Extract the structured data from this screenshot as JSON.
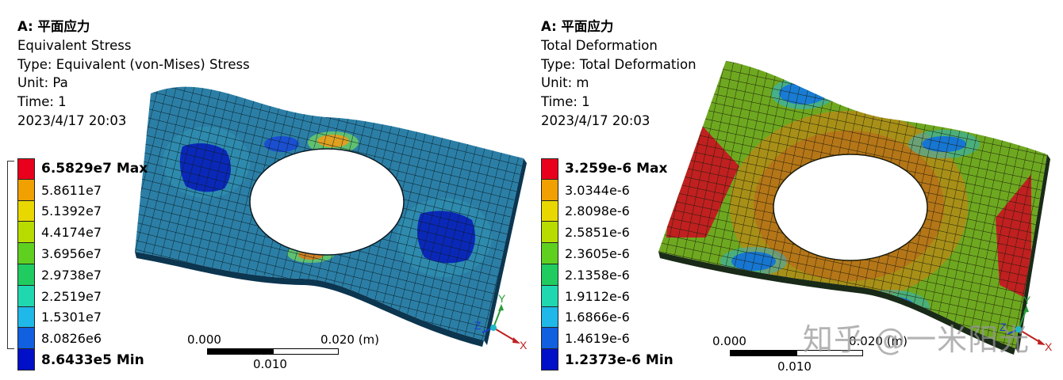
{
  "left": {
    "title": "A: 平面应力",
    "result": "Equivalent Stress",
    "type": "Type: Equivalent (von-Mises) Stress",
    "unit": "Unit: Pa",
    "time": "Time: 1",
    "date": "2023/4/17 20:03",
    "legend": [
      {
        "label": "6.5829e7 Max",
        "color": "#e8001c",
        "bold": true
      },
      {
        "label": "5.8611e7",
        "color": "#f0a000",
        "bold": false
      },
      {
        "label": "5.1392e7",
        "color": "#e8d800",
        "bold": false
      },
      {
        "label": "4.4174e7",
        "color": "#b8dc00",
        "bold": false
      },
      {
        "label": "3.6956e7",
        "color": "#60d020",
        "bold": false
      },
      {
        "label": "2.9738e7",
        "color": "#20cc60",
        "bold": false
      },
      {
        "label": "2.2519e7",
        "color": "#20d8b0",
        "bold": false
      },
      {
        "label": "1.5301e7",
        "color": "#20b8e8",
        "bold": false
      },
      {
        "label": "8.0826e6",
        "color": "#1060e0",
        "bold": false
      },
      {
        "label": "8.6433e5 Min",
        "color": "#0010c8",
        "bold": true
      }
    ],
    "scale": {
      "start": "0.000",
      "end": "0.020 (m)",
      "mid": "0.010"
    }
  },
  "right": {
    "title": "A: 平面应力",
    "result": "Total Deformation",
    "type": "Type: Total Deformation",
    "unit": "Unit: m",
    "time": "Time: 1",
    "date": "2023/4/17 20:03",
    "legend": [
      {
        "label": "3.259e-6 Max",
        "color": "#e8001c",
        "bold": true
      },
      {
        "label": "3.0344e-6",
        "color": "#f0a000",
        "bold": false
      },
      {
        "label": "2.8098e-6",
        "color": "#e8d800",
        "bold": false
      },
      {
        "label": "2.5851e-6",
        "color": "#b8dc00",
        "bold": false
      },
      {
        "label": "2.3605e-6",
        "color": "#60d020",
        "bold": false
      },
      {
        "label": "2.1358e-6",
        "color": "#20cc60",
        "bold": false
      },
      {
        "label": "1.9112e-6",
        "color": "#20d8b0",
        "bold": false
      },
      {
        "label": "1.6866e-6",
        "color": "#20b8e8",
        "bold": false
      },
      {
        "label": "1.4619e-6",
        "color": "#1060e0",
        "bold": false
      },
      {
        "label": "1.2373e-6 Min",
        "color": "#0010c8",
        "bold": true
      }
    ],
    "scale": {
      "start": "0.000",
      "end": "0.020 (m)",
      "mid": "0.010"
    }
  },
  "axes": {
    "x": "X",
    "y": "Y",
    "z": "Z"
  },
  "watermark": "知乎 @一米阳光"
}
